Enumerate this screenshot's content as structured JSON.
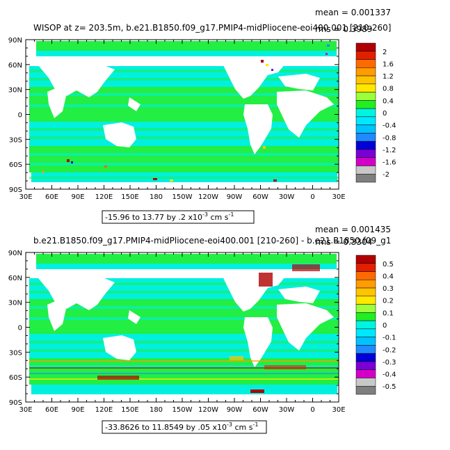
{
  "panels": [
    {
      "title": "WISOP at z= 203.5m, b.e21.B1850.f09_g17.PMIP4-midPliocene-eoi400.001 [210-260]",
      "mean_label": "mean = 0.001337",
      "rms_label": "rms = 0.3989",
      "range_label": "-15.96 to 13.77 by .2 x10",
      "range_exp": "-3",
      "range_units": " cm s",
      "range_units_exp": "-1",
      "colorbar_labels": [
        "2",
        "1.6",
        "1.2",
        "0.8",
        "0.4",
        "0",
        "-0.4",
        "-0.8",
        "-1.2",
        "-1.6",
        "-2"
      ]
    },
    {
      "title": "b.e21.B1850.f09_g17.PMIP4-midPliocene-eoi400.001 [210-260] - b.e21.B1850.f09_g1",
      "mean_label": "mean = 0.001435",
      "rms_label": "rms = 0.3304",
      "range_label": "-33.8626 to 11.8549 by .05 x10",
      "range_exp": "-3",
      "range_units": " cm s",
      "range_units_exp": "-1",
      "colorbar_labels": [
        "0.5",
        "0.4",
        "0.3",
        "0.2",
        "0.1",
        "0",
        "-0.1",
        "-0.2",
        "-0.3",
        "-0.4",
        "-0.5"
      ]
    }
  ],
  "lat_labels": [
    "90N",
    "60N",
    "30N",
    "0",
    "30S",
    "60S",
    "90S"
  ],
  "lon_labels": [
    "30E",
    "60E",
    "90E",
    "120E",
    "150E",
    "180",
    "150W",
    "120W",
    "90W",
    "60W",
    "30W",
    "0",
    "30E"
  ],
  "colorbar_colors": [
    "#7f7f7f",
    "#c8c8c8",
    "#d400c8",
    "#7a00d6",
    "#0000d8",
    "#1e8bff",
    "#00c2ff",
    "#00e8ff",
    "#00f5e0",
    "#22ee22",
    "#9cff3c",
    "#ffe800",
    "#ffc400",
    "#ff9c00",
    "#ff6a00",
    "#e02000",
    "#b00000"
  ],
  "colors": {
    "ocean_green": "#22ee44",
    "ocean_cyan": "#00f0e0",
    "land": "#ffffff"
  }
}
